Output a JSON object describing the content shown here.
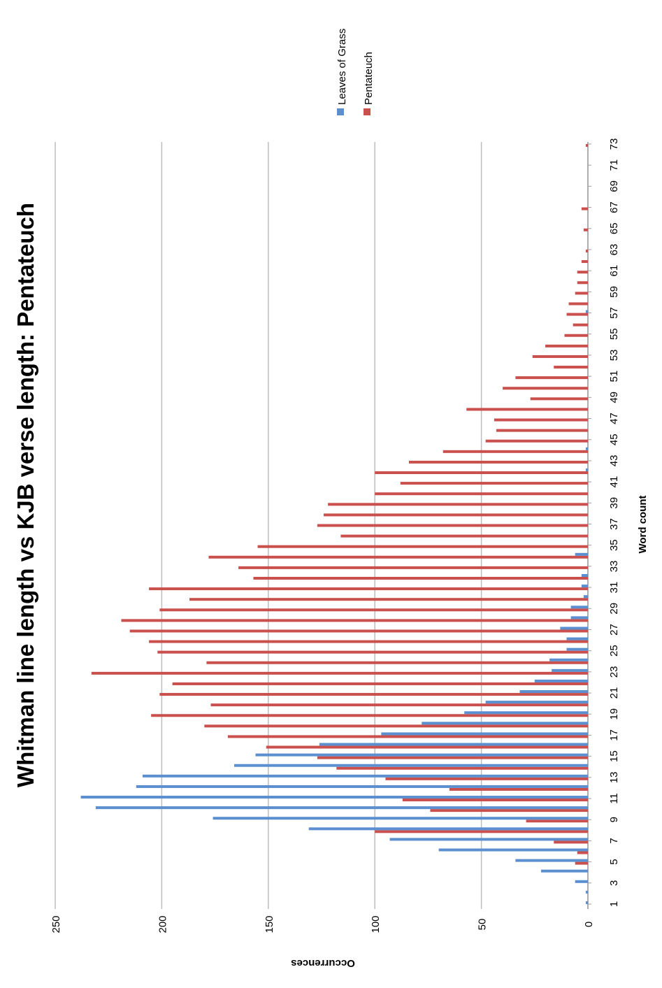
{
  "chart_data": {
    "type": "bar",
    "orientation": "rotated-90-clockwise",
    "title": "Whitman line length vs KJB verse length: Pentateuch",
    "xlabel": "Word count",
    "ylabel": "Occurrences",
    "ylim": [
      0,
      250
    ],
    "yticks": [
      0,
      50,
      100,
      150,
      200,
      250
    ],
    "xtick_labels": [
      "1",
      "3",
      "5",
      "7",
      "9",
      "11",
      "13",
      "15",
      "17",
      "19",
      "21",
      "23",
      "25",
      "27",
      "29",
      "31",
      "33",
      "35",
      "37",
      "39",
      "41",
      "43",
      "45",
      "47",
      "49",
      "51",
      "53",
      "55",
      "57",
      "59",
      "61",
      "63",
      "65",
      "67",
      "69",
      "71",
      "73"
    ],
    "legend_position": "top-right",
    "grid": true,
    "x": [
      1,
      2,
      3,
      4,
      5,
      6,
      7,
      8,
      9,
      10,
      11,
      12,
      13,
      14,
      15,
      16,
      17,
      18,
      19,
      20,
      21,
      22,
      23,
      24,
      25,
      26,
      27,
      28,
      29,
      30,
      31,
      32,
      33,
      34,
      35,
      36,
      37,
      38,
      39,
      40,
      41,
      42,
      43,
      44,
      45,
      46,
      47,
      48,
      49,
      50,
      51,
      52,
      53,
      54,
      55,
      56,
      57,
      58,
      59,
      60,
      61,
      62,
      63,
      64,
      65,
      66,
      67,
      68,
      69,
      70,
      71,
      72,
      73
    ],
    "series": [
      {
        "name": "Leaves of Grass",
        "color": "#5b8fd0",
        "values": [
          1,
          1,
          6,
          22,
          34,
          70,
          93,
          131,
          176,
          231,
          238,
          212,
          209,
          166,
          156,
          126,
          97,
          78,
          58,
          48,
          32,
          25,
          17,
          18,
          10,
          10,
          13,
          8,
          8,
          2,
          3,
          3,
          0,
          6,
          0,
          0,
          0,
          0,
          0,
          0,
          0,
          1,
          0,
          1,
          0,
          0,
          0,
          0,
          0,
          0,
          0,
          0,
          0,
          0,
          0,
          0,
          1,
          0,
          0,
          0,
          0,
          0,
          0,
          0,
          0,
          0,
          0,
          0,
          0,
          0,
          0,
          0,
          0
        ]
      },
      {
        "name": "Pentateuch",
        "color": "#c9504d",
        "values": [
          0,
          0,
          0,
          0,
          6,
          5,
          16,
          100,
          29,
          74,
          87,
          65,
          95,
          118,
          127,
          151,
          169,
          180,
          205,
          177,
          201,
          195,
          233,
          179,
          202,
          206,
          215,
          219,
          201,
          187,
          206,
          157,
          164,
          178,
          155,
          116,
          127,
          124,
          122,
          100,
          88,
          100,
          84,
          68,
          48,
          43,
          44,
          57,
          27,
          40,
          34,
          16,
          26,
          20,
          11,
          7,
          10,
          9,
          6,
          5,
          5,
          3,
          1,
          0,
          2,
          0,
          3,
          0,
          0,
          0,
          0,
          0,
          1
        ]
      }
    ]
  }
}
